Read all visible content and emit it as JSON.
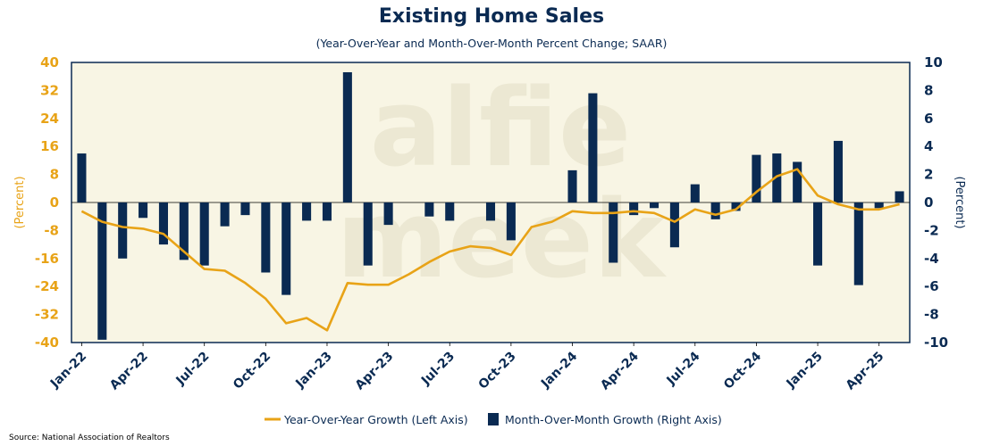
{
  "title": "Existing Home Sales",
  "subtitle": "(Year-Over-Year and Month-Over-Month Percent Change; SAAR)",
  "source": "Source: National Association of Realtors",
  "watermark": [
    "alfie",
    "meek"
  ],
  "colors": {
    "plot_background": "#f8f5e4",
    "line": "#e8a317",
    "bars": "#0a2a52",
    "left_axis": "#e8a317",
    "right_axis": "#0a2a52"
  },
  "chart_data": {
    "type": "bar",
    "title": "Existing Home Sales",
    "subtitle": "(Year-Over-Year and Month-Over-Month Percent Change; SAAR)",
    "left_axis": {
      "label": "(Percent)",
      "ylim": [
        -40,
        40
      ],
      "ticks": [
        "40",
        "32",
        "24",
        "16",
        "8",
        "0",
        "-8",
        "-16",
        "-24",
        "-32",
        "-40"
      ]
    },
    "right_axis": {
      "label": "(Percent)",
      "ylim": [
        -10,
        10
      ],
      "ticks": [
        "10",
        "8",
        "6",
        "4",
        "2",
        "0",
        "-2",
        "-4",
        "-6",
        "-8",
        "-10"
      ]
    },
    "x_tick_labels": [
      "Jan-22",
      "Apr-22",
      "Jul-22",
      "Oct-22",
      "Jan-23",
      "Apr-23",
      "Jul-23",
      "Oct-23",
      "Jan-24",
      "Apr-24",
      "Jul-24",
      "Oct-24",
      "Jan-25",
      "Apr-25"
    ],
    "categories": [
      "Jan-22",
      "Feb-22",
      "Mar-22",
      "Apr-22",
      "May-22",
      "Jun-22",
      "Jul-22",
      "Aug-22",
      "Sep-22",
      "Oct-22",
      "Nov-22",
      "Dec-22",
      "Jan-23",
      "Feb-23",
      "Mar-23",
      "Apr-23",
      "May-23",
      "Jun-23",
      "Jul-23",
      "Aug-23",
      "Sep-23",
      "Oct-23",
      "Nov-23",
      "Dec-23",
      "Jan-24",
      "Feb-24",
      "Mar-24",
      "Apr-24",
      "May-24",
      "Jun-24",
      "Jul-24",
      "Aug-24",
      "Sep-24",
      "Oct-24",
      "Nov-24",
      "Dec-24",
      "Jan-25",
      "Feb-25",
      "Mar-25",
      "Apr-25",
      "May-25"
    ],
    "series": [
      {
        "name": "Year-Over-Year Growth (Left Axis)",
        "axis": "left",
        "type": "line",
        "values": [
          -2.5,
          -5.5,
          -7,
          -7.5,
          -9,
          -14,
          -19,
          -19.5,
          -23,
          -27.5,
          -34.5,
          -33,
          -36.5,
          -23,
          -23.5,
          -23.5,
          -20.5,
          -17,
          -14,
          -12.5,
          -13,
          -15,
          -7,
          -5.5,
          -2.5,
          -3,
          -3,
          -2.5,
          -3,
          -5.5,
          -2,
          -3.5,
          -2,
          3,
          7.5,
          9.5,
          2,
          -0.5,
          -2,
          -2,
          -0.5
        ]
      },
      {
        "name": "Month-Over-Month Growth (Right Axis)",
        "axis": "right",
        "type": "bar",
        "values": [
          3.5,
          -9.8,
          -4,
          -1.1,
          -3,
          -4.1,
          -4.5,
          -1.7,
          -0.9,
          -5,
          -6.6,
          -1.3,
          -1.3,
          9.3,
          -4.5,
          -1.6,
          0,
          -1,
          -1.3,
          0,
          -1.3,
          -2.7,
          0,
          0,
          2.3,
          7.8,
          -4.3,
          -0.9,
          -0.4,
          -3.2,
          1.3,
          -1.2,
          -0.6,
          3.4,
          3.5,
          2.9,
          -4.5,
          4.4,
          -5.9,
          -0.4,
          0.8
        ]
      }
    ],
    "legend": {
      "placement": "bottom-center"
    },
    "grid": false
  }
}
